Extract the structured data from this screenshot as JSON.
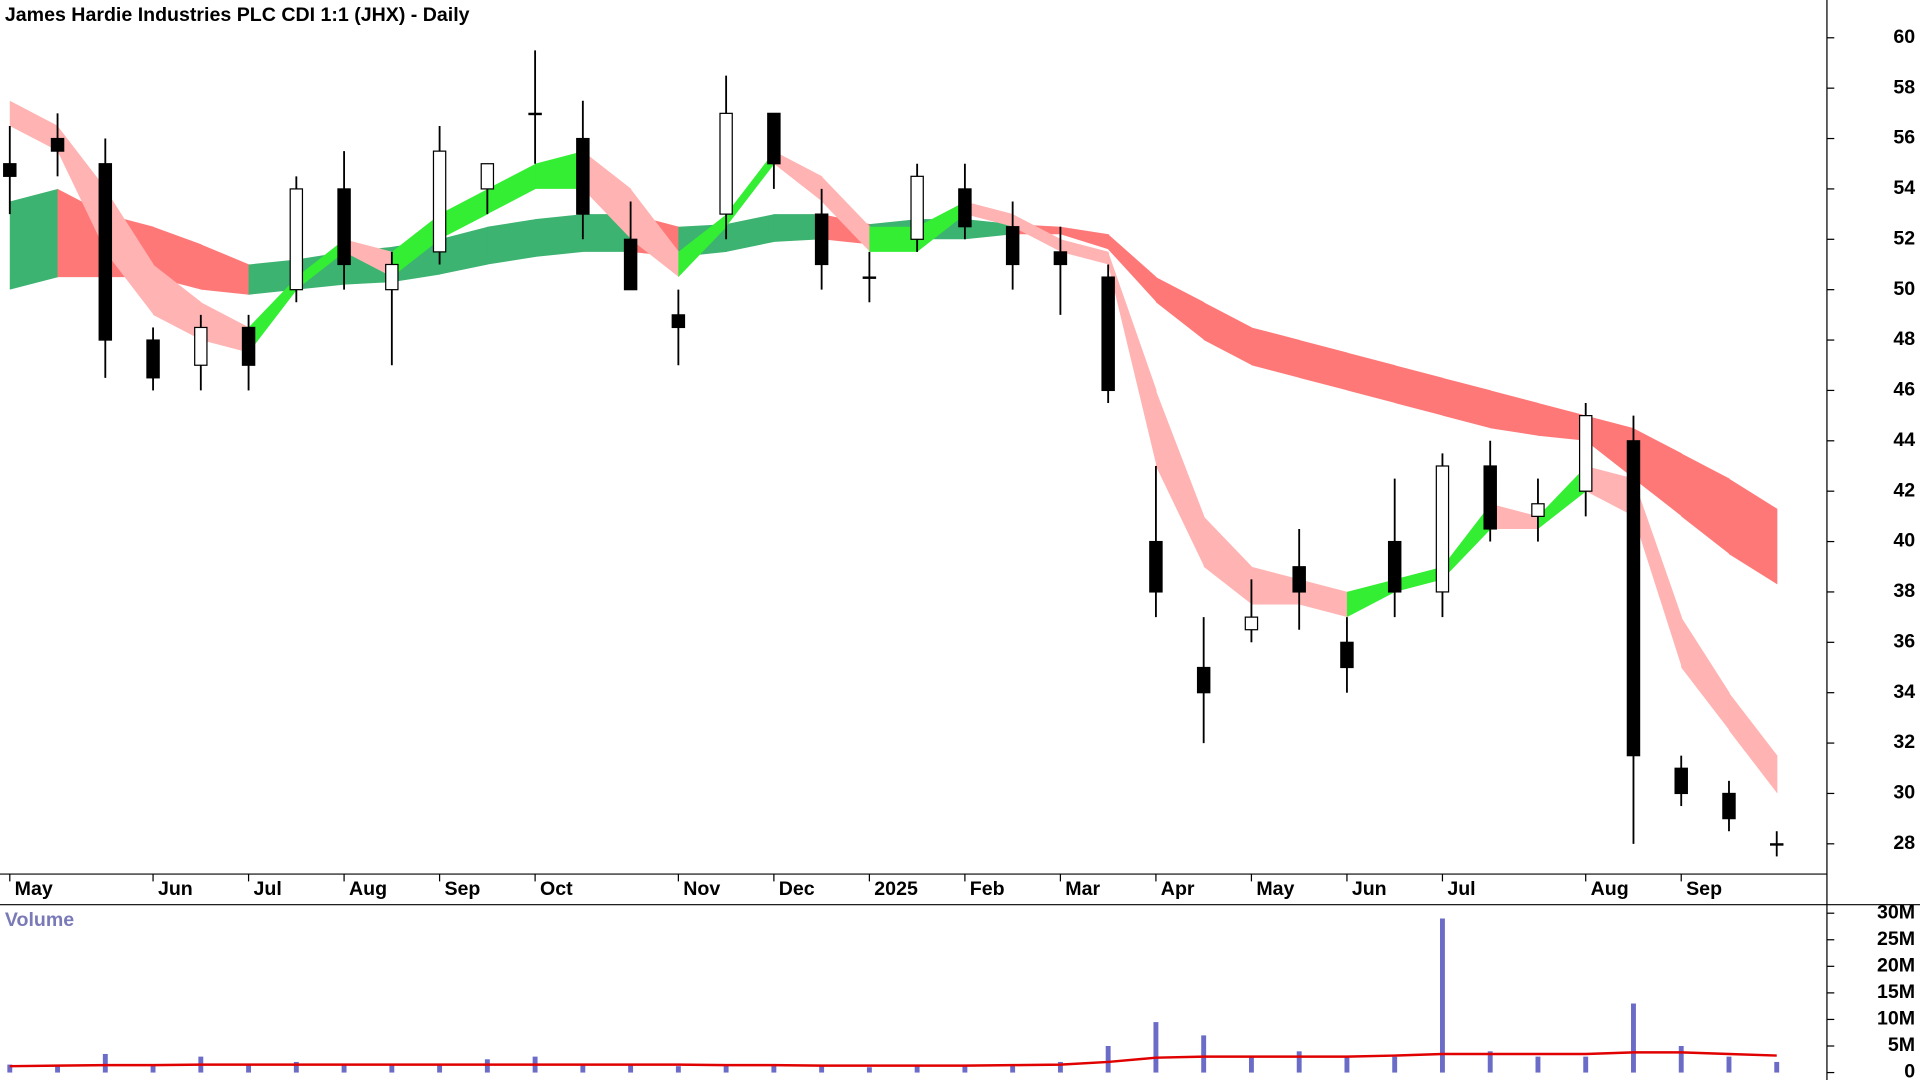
{
  "chart_data": {
    "type": "candlestick",
    "title": "James Hardie Industries PLC CDI 1:1 (JHX) - Daily",
    "categories": [
      "May",
      null,
      null,
      "Jun",
      null,
      "Jul",
      null,
      "Aug",
      null,
      "Sep",
      null,
      "Oct",
      null,
      null,
      "Nov",
      null,
      "Dec",
      null,
      "2025",
      null,
      "Feb",
      null,
      "Mar",
      null,
      "Apr",
      null,
      "May",
      null,
      "Jun",
      null,
      "Jul",
      null,
      null,
      "Aug",
      null,
      "Sep",
      null,
      null
    ],
    "open": [
      55,
      56,
      55,
      48,
      47,
      48.5,
      50,
      54,
      50,
      51.5,
      54,
      57,
      56,
      52,
      49,
      53,
      57,
      53,
      50.5,
      52,
      54,
      52.5,
      51.5,
      50.5,
      40,
      35,
      36.5,
      39,
      36,
      40,
      38,
      43,
      41,
      42,
      44,
      31,
      30,
      28
    ],
    "high": [
      56.5,
      57,
      56,
      48.5,
      49,
      49,
      54.5,
      55.5,
      51.5,
      56.5,
      55,
      59.5,
      57.5,
      53.5,
      50,
      58.5,
      57,
      54,
      51.5,
      55,
      55,
      53.5,
      52.5,
      51,
      43,
      37,
      38.5,
      40.5,
      37,
      42.5,
      43.5,
      44,
      42.5,
      45.5,
      45,
      31.5,
      30.5,
      28.5
    ],
    "low": [
      53,
      54.5,
      46.5,
      46,
      46,
      46,
      49.5,
      50,
      47,
      51,
      53,
      55,
      52,
      50,
      47,
      52,
      54,
      50,
      49.5,
      51.5,
      52,
      50,
      49,
      45.5,
      37,
      32,
      36,
      36.5,
      34,
      37,
      37,
      40,
      40,
      41,
      28,
      29.5,
      28.5,
      27.5
    ],
    "close": [
      54.5,
      55.5,
      48,
      46.5,
      48.5,
      47,
      54,
      51,
      51,
      55.5,
      55,
      57,
      53,
      50,
      48.5,
      57,
      55,
      51,
      50.5,
      54.5,
      52.5,
      51,
      51,
      46,
      38,
      34,
      37,
      38,
      35,
      38,
      43,
      40.5,
      41.5,
      45,
      31.5,
      30,
      29,
      28
    ],
    "up_color": "#ffffff",
    "down_color": "#000000",
    "fast_band": {
      "lower": [
        56.5,
        55.5,
        51.5,
        49,
        48,
        47.5,
        50,
        51.5,
        50.5,
        52,
        53,
        54,
        54,
        52,
        50.5,
        52.5,
        55,
        53.5,
        51.5,
        51.5,
        53,
        52.5,
        51.5,
        51,
        43,
        39,
        37.5,
        37.5,
        37,
        38,
        38.5,
        40.5,
        40.5,
        42,
        41,
        35,
        32.5,
        30
      ],
      "upper": [
        57.5,
        56.5,
        54,
        51,
        49.5,
        48.5,
        50.5,
        52,
        51.5,
        53,
        54,
        55,
        55.5,
        54,
        51.5,
        53,
        55.5,
        54.5,
        52.5,
        52.5,
        53.5,
        53,
        52,
        51.5,
        46,
        41,
        39,
        38.5,
        38,
        38.5,
        39,
        41.5,
        41,
        43,
        42.5,
        37,
        34,
        31.5
      ],
      "rising_color": "#33ee33",
      "falling_color": "#ffb3b3"
    },
    "slow_band": {
      "lower": [
        50,
        50.5,
        50.5,
        50.5,
        50,
        49.8,
        50,
        50.2,
        50.3,
        50.6,
        51,
        51.3,
        51.5,
        51.5,
        51.3,
        51.5,
        51.9,
        52,
        51.8,
        52,
        52,
        52.2,
        52.2,
        51.6,
        49.5,
        48,
        47,
        46.5,
        46,
        45.5,
        45,
        44.5,
        44.2,
        44,
        42.5,
        41,
        39.5,
        38.3
      ],
      "upper": [
        53.5,
        54,
        53,
        52.5,
        51.8,
        51,
        51.2,
        51.5,
        51.7,
        52,
        52.5,
        52.8,
        53,
        53,
        52.5,
        52.6,
        53,
        53,
        52.6,
        52.8,
        52.8,
        52.6,
        52.5,
        52.2,
        50.5,
        49.5,
        48.5,
        48,
        47.5,
        47,
        46.5,
        46,
        45.5,
        45,
        44.5,
        43.5,
        42.5,
        41.3
      ],
      "rising_color": "#3cb371",
      "falling_color": "#ff7878"
    },
    "ylim": [
      26.8,
      61.5
    ],
    "yticks": [
      28,
      30,
      32,
      34,
      36,
      38,
      40,
      42,
      44,
      46,
      48,
      50,
      52,
      54,
      56,
      58,
      60
    ],
    "volume": {
      "title": "Volume",
      "values": [
        1500000,
        1500000,
        3500000,
        1500000,
        3000000,
        1500000,
        2000000,
        1500000,
        1500000,
        1500000,
        2500000,
        3000000,
        1500000,
        1500000,
        1200000,
        1500000,
        1500000,
        1200000,
        1000000,
        1200000,
        1500000,
        1500000,
        2000000,
        5000000,
        9500000,
        7000000,
        3000000,
        4000000,
        3000000,
        3000000,
        29000000,
        4000000,
        3000000,
        3000000,
        13000000,
        5000000,
        3000000,
        2000000
      ],
      "average": [
        1200000,
        1300000,
        1400000,
        1400000,
        1500000,
        1500000,
        1500000,
        1500000,
        1500000,
        1500000,
        1500000,
        1500000,
        1500000,
        1500000,
        1500000,
        1400000,
        1400000,
        1300000,
        1300000,
        1300000,
        1300000,
        1400000,
        1500000,
        2000000,
        2800000,
        3000000,
        3000000,
        3000000,
        3000000,
        3200000,
        3500000,
        3500000,
        3500000,
        3500000,
        3800000,
        3800000,
        3500000,
        3200000
      ],
      "color": "#6b6bc8",
      "average_color": "#e00000",
      "ylim": [
        -1400000,
        31600000
      ],
      "yticks": [
        0,
        {
          "value": 5000000,
          "label": "5M"
        },
        {
          "value": 10000000,
          "label": "10M"
        },
        {
          "value": 15000000,
          "label": "15M"
        },
        {
          "value": 20000000,
          "label": "20M"
        },
        {
          "value": 25000000,
          "label": "25M"
        },
        {
          "value": 30000000,
          "label": "30M"
        }
      ]
    }
  }
}
